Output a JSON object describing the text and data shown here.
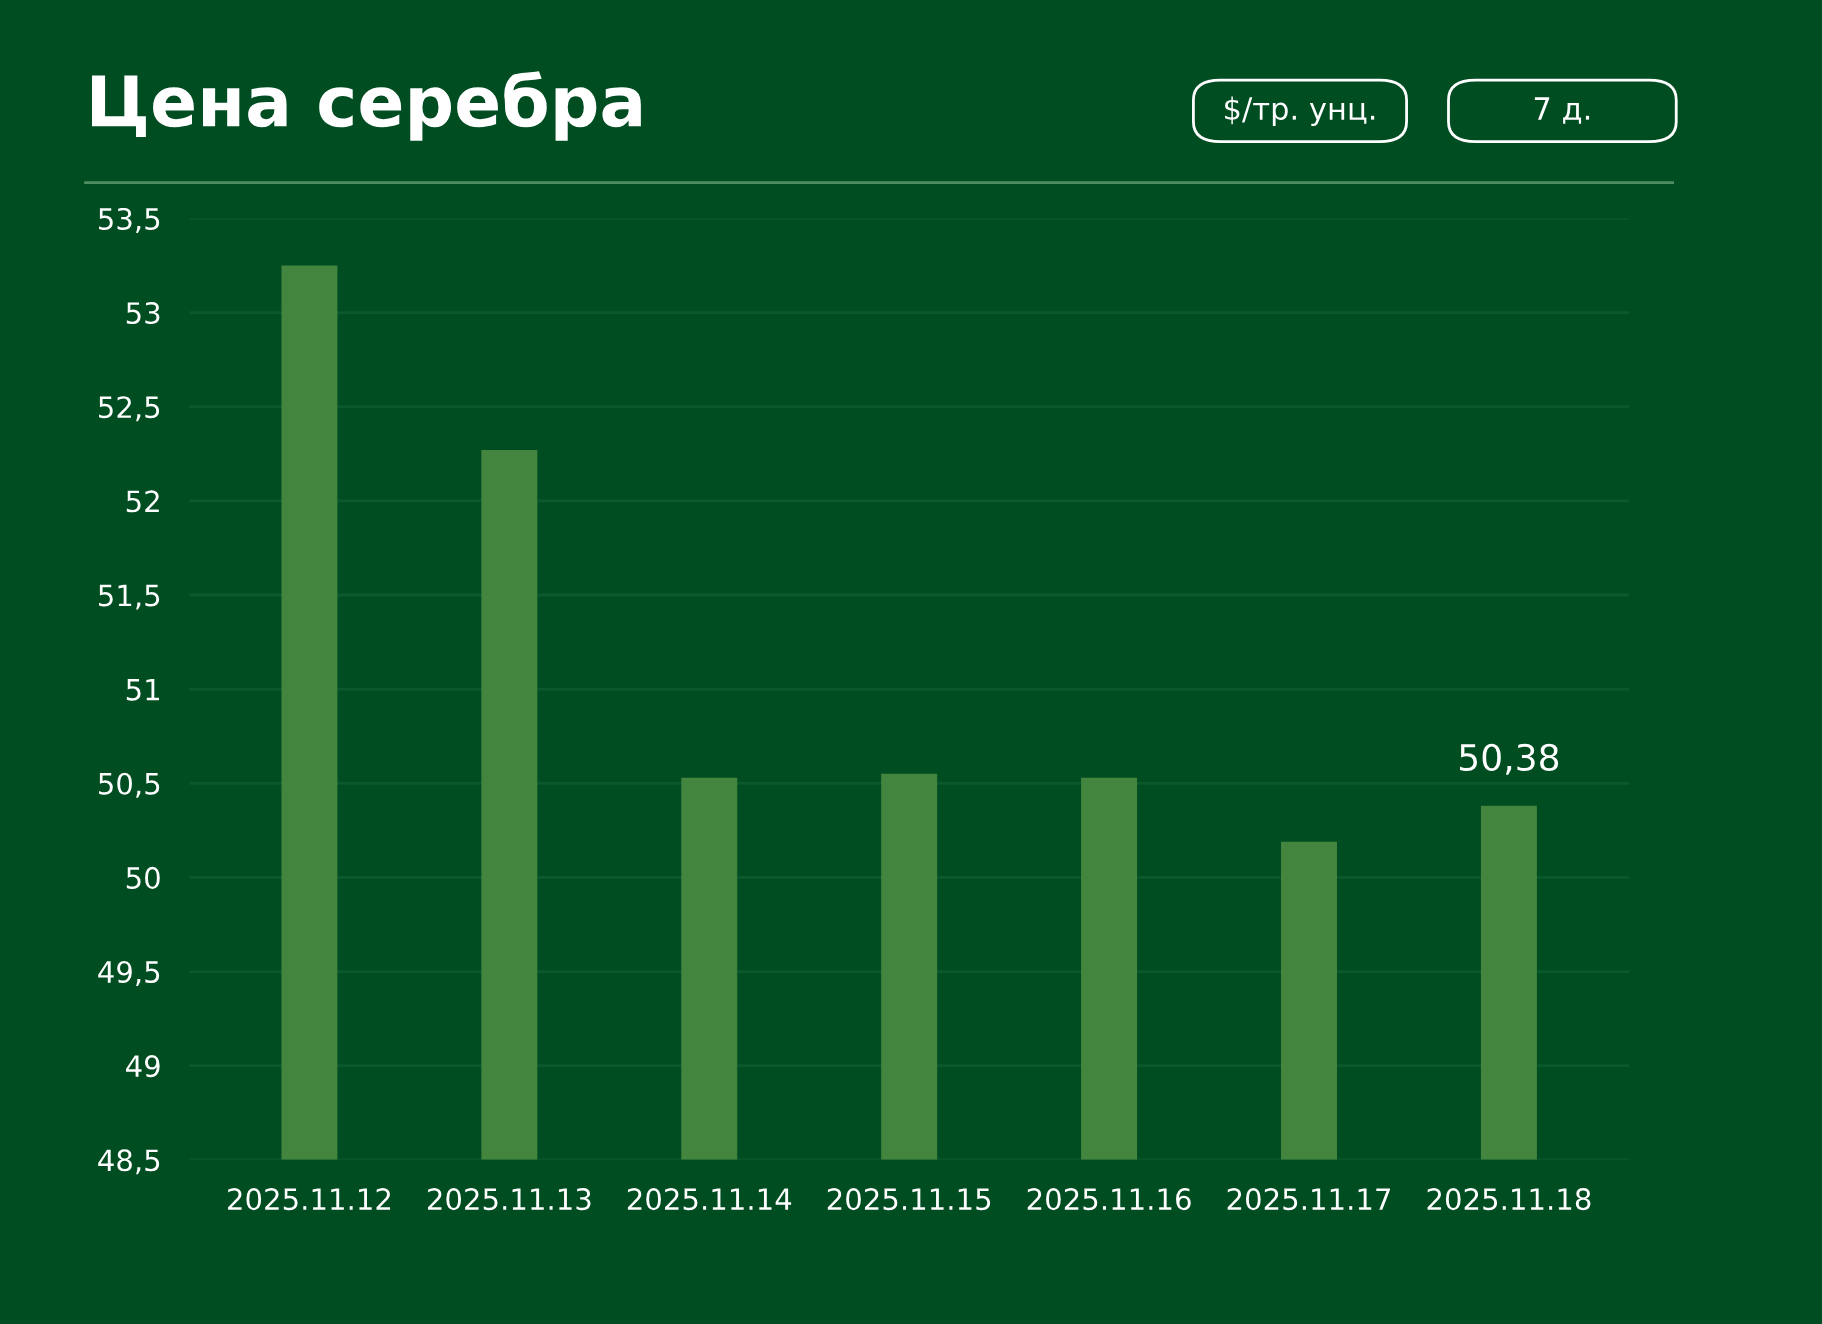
{
  "chart_data": {
    "type": "bar",
    "title": "Цена серебра",
    "annotations": [
      "$/тр. унц.",
      "7 д."
    ],
    "categories": [
      "2025.11.12",
      "2025.11.13",
      "2025.11.14",
      "2025.11.15",
      "2025.11.16",
      "2025.11.17",
      "2025.11.18"
    ],
    "values": [
      53.25,
      52.27,
      50.53,
      50.55,
      50.53,
      50.19,
      50.38
    ],
    "value_labels": [
      null,
      null,
      null,
      null,
      null,
      null,
      "50,38"
    ],
    "color": "#43853f",
    "ylim": [
      48.5,
      53.5
    ],
    "yticks": [
      {
        "value": 48.5,
        "label": "48,5"
      },
      49,
      {
        "value": 49.5,
        "label": "49,5"
      },
      50,
      {
        "value": 50.5,
        "label": "50,5"
      },
      51,
      {
        "value": 51.5,
        "label": "51,5"
      },
      52,
      {
        "value": 52.5,
        "label": "52,5"
      },
      53,
      {
        "value": 53.5,
        "label": "53,5"
      }
    ],
    "grid": "y"
  }
}
